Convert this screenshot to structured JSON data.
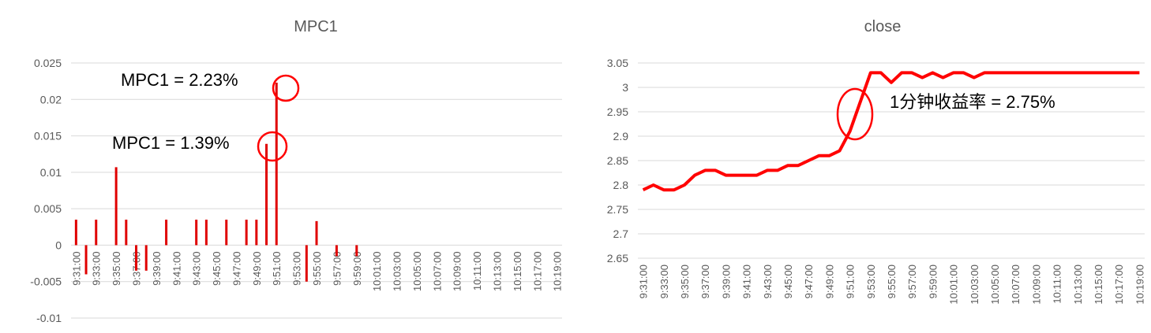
{
  "chart_data": [
    {
      "type": "bar",
      "title": "MPC1",
      "color": "#e00000",
      "grid": true,
      "ylim": [
        -0.01,
        0.025
      ],
      "yticks": [
        -0.01,
        -0.005,
        0,
        0.005,
        0.01,
        0.015,
        0.02,
        0.025
      ],
      "categories": [
        "9:31:00",
        null,
        "9:33:00",
        null,
        "9:35:00",
        null,
        "9:37:00",
        null,
        "9:39:00",
        null,
        "9:41:00",
        null,
        "9:43:00",
        null,
        "9:45:00",
        null,
        "9:47:00",
        null,
        "9:49:00",
        null,
        "9:51:00",
        null,
        "9:53:00",
        null,
        "9:55:00",
        null,
        "9:57:00",
        null,
        "9:59:00",
        null,
        "10:01:00",
        null,
        "10:03:00",
        null,
        "10:05:00",
        null,
        "10:07:00",
        null,
        "10:09:00",
        null,
        "10:11:00",
        null,
        "10:13:00",
        null,
        "10:15:00",
        null,
        "10:17:00",
        null,
        "10:19:00"
      ],
      "values": [
        0.0035,
        -0.004,
        0.0035,
        0,
        0.0107,
        0.0035,
        -0.0035,
        -0.0035,
        0,
        0.0035,
        0,
        0,
        0.0035,
        0.0035,
        0,
        0.0035,
        0,
        0.0035,
        0.0035,
        0.0139,
        0.0223,
        0,
        0,
        -0.005,
        0.0033,
        0,
        -0.0015,
        0,
        -0.0015,
        0,
        0,
        0,
        0,
        0,
        0,
        0,
        0,
        0,
        0,
        0,
        0,
        0,
        0,
        0,
        0,
        0,
        0,
        0,
        0
      ],
      "annotations": [
        "MPC1 = 2.23%",
        "MPC1 = 1.39%"
      ]
    },
    {
      "type": "line",
      "title": "close",
      "color": "#ff0000",
      "grid": true,
      "ylim": [
        2.65,
        3.05
      ],
      "yticks": [
        2.65,
        2.7,
        2.75,
        2.8,
        2.85,
        2.9,
        2.95,
        3,
        3.05
      ],
      "categories": [
        "9:31:00",
        null,
        "9:33:00",
        null,
        "9:35:00",
        null,
        "9:37:00",
        null,
        "9:39:00",
        null,
        "9:41:00",
        null,
        "9:43:00",
        null,
        "9:45:00",
        null,
        "9:47:00",
        null,
        "9:49:00",
        null,
        "9:51:00",
        null,
        "9:53:00",
        null,
        "9:55:00",
        null,
        "9:57:00",
        null,
        "9:59:00",
        null,
        "10:01:00",
        null,
        "10:03:00",
        null,
        "10:05:00",
        null,
        "10:07:00",
        null,
        "10:09:00",
        null,
        "10:11:00",
        null,
        "10:13:00",
        null,
        "10:15:00",
        null,
        "10:17:00",
        null,
        "10:19:00"
      ],
      "values": [
        2.79,
        2.8,
        2.79,
        2.79,
        2.8,
        2.82,
        2.83,
        2.83,
        2.82,
        2.82,
        2.82,
        2.82,
        2.83,
        2.83,
        2.84,
        2.84,
        2.85,
        2.86,
        2.86,
        2.87,
        2.91,
        2.97,
        3.03,
        3.03,
        3.01,
        3.03,
        3.03,
        3.02,
        3.03,
        3.02,
        3.03,
        3.03,
        3.02,
        3.03,
        3.03,
        3.03,
        3.03,
        3.03,
        3.03,
        3.03,
        3.03,
        3.03,
        3.03,
        3.03,
        3.03,
        3.03,
        3.03,
        3.03,
        3.03
      ],
      "annotations": [
        "1分钟收益率 = 2.75%"
      ]
    }
  ]
}
